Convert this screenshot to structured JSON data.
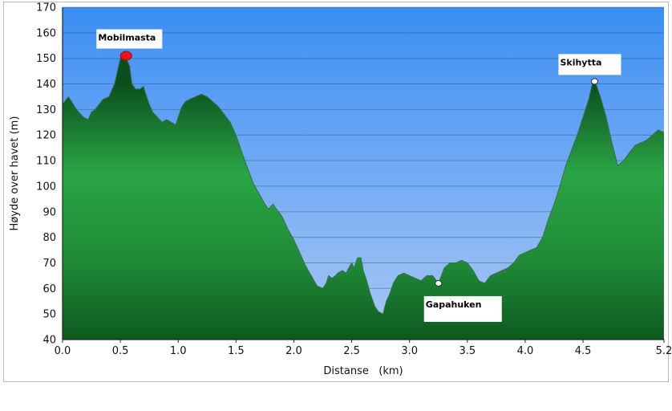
{
  "chart_data": {
    "type": "area",
    "xlabel": "Distanse   (km)",
    "ylabel": "Høyde over havet (m)",
    "xlim": [
      0,
      5.2
    ],
    "ylim": [
      40,
      170
    ],
    "xticks": [
      "0.0",
      "0.5",
      "1.0",
      "1.5",
      "2.0",
      "2.5",
      "3.0",
      "3.5",
      "4.0",
      "4.5",
      "5.2"
    ],
    "yticks": [
      "40",
      "50",
      "60",
      "70",
      "80",
      "90",
      "100",
      "110",
      "120",
      "130",
      "140",
      "150",
      "160",
      "170"
    ],
    "grid": true,
    "series": [
      {
        "x": [
          0.0,
          0.05,
          0.08,
          0.12,
          0.18,
          0.22,
          0.25,
          0.28,
          0.3,
          0.35,
          0.4,
          0.45,
          0.5,
          0.53,
          0.55,
          0.58,
          0.6,
          0.63,
          0.67,
          0.7,
          0.72,
          0.75,
          0.78,
          0.82,
          0.86,
          0.9,
          0.94,
          0.98,
          1.0,
          1.03,
          1.06,
          1.1,
          1.15,
          1.2,
          1.25,
          1.3,
          1.35,
          1.4,
          1.45,
          1.5,
          1.53,
          1.56,
          1.6,
          1.65,
          1.7,
          1.75,
          1.78,
          1.82,
          1.85,
          1.9,
          1.95,
          2.0,
          2.05,
          2.1,
          2.15,
          2.2,
          2.25,
          2.28,
          2.3,
          2.33,
          2.36,
          2.38,
          2.42,
          2.45,
          2.5,
          2.52,
          2.55,
          2.58,
          2.6,
          2.63,
          2.66,
          2.7,
          2.73,
          2.77,
          2.8,
          2.83,
          2.86,
          2.9,
          2.95,
          3.0,
          3.05,
          3.1,
          3.15,
          3.2,
          3.25,
          3.3,
          3.35,
          3.4,
          3.45,
          3.5,
          3.55,
          3.6,
          3.65,
          3.7,
          3.75,
          3.8,
          3.85,
          3.9,
          3.95,
          4.0,
          4.05,
          4.1,
          4.15,
          4.2,
          4.25,
          4.3,
          4.35,
          4.4,
          4.45,
          4.5,
          4.55,
          4.58,
          4.6,
          4.62,
          4.65,
          4.7,
          4.75,
          4.8,
          4.85,
          4.9,
          4.95,
          5.0,
          5.05,
          5.1,
          5.15,
          5.2
        ],
        "y": [
          132,
          135,
          133,
          130,
          127,
          126,
          129,
          130,
          131,
          134,
          135,
          140,
          150,
          151,
          150,
          147,
          140,
          138,
          138,
          139,
          136,
          132,
          129,
          127,
          125,
          126,
          125,
          124,
          127,
          131,
          133,
          134,
          135,
          136,
          135,
          133,
          131,
          128,
          125,
          120,
          116,
          112,
          107,
          101,
          97,
          93,
          91,
          93,
          91,
          88,
          83,
          79,
          74,
          69,
          65,
          61,
          60,
          62,
          65,
          64,
          65,
          66,
          67,
          66,
          70,
          68,
          72,
          72,
          67,
          63,
          58,
          53,
          51,
          50,
          55,
          58,
          62,
          65,
          66,
          65,
          64,
          63,
          65,
          65,
          62,
          68,
          70,
          70,
          71,
          70,
          67,
          63,
          62,
          65,
          66,
          67,
          68,
          70,
          73,
          74,
          75,
          76,
          80,
          87,
          93,
          100,
          108,
          114,
          120,
          127,
          134,
          140,
          141,
          139,
          135,
          127,
          117,
          108,
          110,
          113,
          116,
          117,
          118,
          120,
          122,
          121
        ]
      }
    ],
    "annotations": [
      {
        "label": "Mobilmasta",
        "x": 0.55,
        "y": 151
      },
      {
        "label": "Skihytta",
        "x": 4.6,
        "y": 141
      },
      {
        "label": "Gapahuken",
        "x": 3.25,
        "y": 62
      }
    ]
  }
}
